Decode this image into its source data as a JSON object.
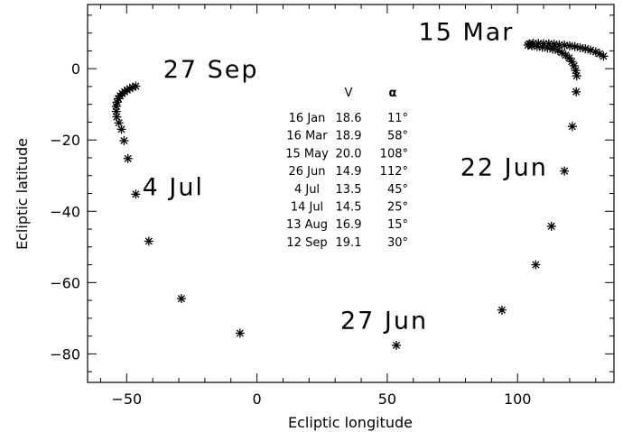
{
  "chart_data": {
    "type": "scatter",
    "xlabel": "Ecliptic longitude",
    "ylabel": "Ecliptic latitude",
    "xlim": [
      -65,
      137
    ],
    "ylim": [
      -88,
      18
    ],
    "xticks": [
      -50,
      0,
      50,
      100
    ],
    "yticks": [
      -80,
      -60,
      -40,
      -20,
      0
    ],
    "marker": "asterisk",
    "grid": false,
    "points": [
      {
        "x": 133.0,
        "y": 3.5
      },
      {
        "x": 131.5,
        "y": 4.2
      },
      {
        "x": 130.0,
        "y": 4.7
      },
      {
        "x": 128.0,
        "y": 5.2
      },
      {
        "x": 126.0,
        "y": 5.6
      },
      {
        "x": 124.0,
        "y": 5.9
      },
      {
        "x": 122.0,
        "y": 6.2
      },
      {
        "x": 120.0,
        "y": 6.4
      },
      {
        "x": 118.0,
        "y": 6.6
      },
      {
        "x": 116.0,
        "y": 6.7
      },
      {
        "x": 114.0,
        "y": 6.9
      },
      {
        "x": 112.0,
        "y": 7.0
      },
      {
        "x": 110.0,
        "y": 7.0
      },
      {
        "x": 108.0,
        "y": 7.1
      },
      {
        "x": 106.0,
        "y": 7.1
      },
      {
        "x": 104.5,
        "y": 7.0
      },
      {
        "x": 104.0,
        "y": 6.6
      },
      {
        "x": 105.5,
        "y": 6.4
      },
      {
        "x": 107.5,
        "y": 6.2
      },
      {
        "x": 109.5,
        "y": 6.0
      },
      {
        "x": 111.5,
        "y": 5.8
      },
      {
        "x": 113.5,
        "y": 5.5
      },
      {
        "x": 115.5,
        "y": 5.1
      },
      {
        "x": 117.0,
        "y": 4.5
      },
      {
        "x": 118.5,
        "y": 3.8
      },
      {
        "x": 119.8,
        "y": 3.0
      },
      {
        "x": 120.8,
        "y": 2.0
      },
      {
        "x": 121.7,
        "y": 0.8
      },
      {
        "x": 122.3,
        "y": -0.5
      },
      {
        "x": 122.7,
        "y": -2.0
      },
      {
        "x": 122.5,
        "y": -6.5
      },
      {
        "x": 121.0,
        "y": -16.2
      },
      {
        "x": 118.0,
        "y": -28.7
      },
      {
        "x": 113.0,
        "y": -44.2
      },
      {
        "x": 107.0,
        "y": -55.0
      },
      {
        "x": 94.0,
        "y": -67.7
      },
      {
        "x": 53.5,
        "y": -77.6
      },
      {
        "x": -6.5,
        "y": -74.2
      },
      {
        "x": -29.0,
        "y": -64.5
      },
      {
        "x": -41.5,
        "y": -48.4
      },
      {
        "x": -46.5,
        "y": -35.2
      },
      {
        "x": -49.5,
        "y": -25.2
      },
      {
        "x": -51.0,
        "y": -20.2
      },
      {
        "x": -52.0,
        "y": -17.0
      },
      {
        "x": -53.0,
        "y": -15.2
      },
      {
        "x": -53.8,
        "y": -13.5
      },
      {
        "x": -54.0,
        "y": -12.0
      },
      {
        "x": -54.0,
        "y": -10.6
      },
      {
        "x": -53.7,
        "y": -9.4
      },
      {
        "x": -53.2,
        "y": -8.4
      },
      {
        "x": -52.5,
        "y": -7.6
      },
      {
        "x": -51.7,
        "y": -7.0
      },
      {
        "x": -50.8,
        "y": -6.5
      },
      {
        "x": -49.8,
        "y": -6.0
      },
      {
        "x": -48.8,
        "y": -5.6
      },
      {
        "x": -47.7,
        "y": -5.2
      },
      {
        "x": -46.5,
        "y": -4.9
      }
    ],
    "annotations": [
      {
        "text": "15 Mar",
        "x": 62,
        "y": 8
      },
      {
        "text": "27 Sep",
        "x": -36,
        "y": -2.5
      },
      {
        "text": "4 Jul",
        "x": -44,
        "y": -35.5
      },
      {
        "text": "22 Jun",
        "x": 78,
        "y": -30
      },
      {
        "text": "27 Jun",
        "x": 32,
        "y": -73
      }
    ],
    "table": {
      "header": [
        "",
        "V",
        "α"
      ],
      "rows": [
        [
          "16 Jan",
          "18.6",
          "11°"
        ],
        [
          "16 Mar",
          "18.9",
          "58°"
        ],
        [
          "15 May",
          "20.0",
          "108°"
        ],
        [
          "26 Jun",
          "14.9",
          "112°"
        ],
        [
          "4 Jul",
          "13.5",
          "45°"
        ],
        [
          "14 Jul",
          "14.5",
          "25°"
        ],
        [
          "13 Aug",
          "16.9",
          "15°"
        ],
        [
          "12 Sep",
          "19.1",
          "30°"
        ]
      ]
    }
  }
}
